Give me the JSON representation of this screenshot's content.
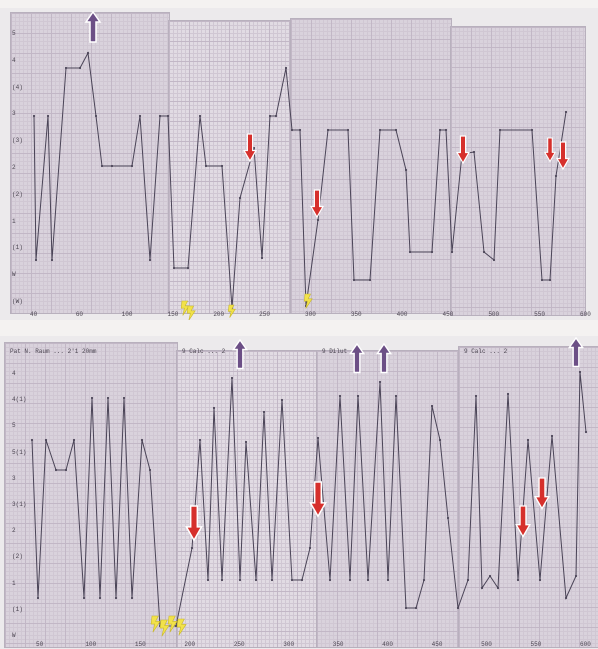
{
  "top_panel": {
    "header_tag": "",
    "y_labels": [
      "5",
      "4",
      "(4)",
      "3",
      "(3)",
      "2",
      "(2)",
      "1",
      "(1)",
      "W",
      "(W)"
    ],
    "x_labels": [
      "40",
      "60",
      "100",
      "150",
      "200",
      "250",
      "300",
      "350",
      "400",
      "450",
      "500",
      "550",
      "600"
    ]
  },
  "bottom_panel": {
    "sheet_headers": [
      "Pat N. Raum ... 2'1 20mm",
      "9  Calc ... 2",
      "9  Dilut ... ",
      "9  Calc ... 2"
    ],
    "y_labels": [
      "4",
      "4(1)",
      "5",
      "5(1)",
      "3",
      "3(1)",
      "2",
      "(2)",
      "1",
      "(1)",
      "W"
    ],
    "x_labels": [
      "50",
      "100",
      "150",
      "200",
      "250",
      "300",
      "350",
      "400",
      "450",
      "500",
      "550",
      "600"
    ]
  },
  "colors": {
    "trace": "#4a4457",
    "down_arrow": "#d6302c",
    "up_arrow": "#6c4f86",
    "bolt": "#f2e24a"
  }
}
